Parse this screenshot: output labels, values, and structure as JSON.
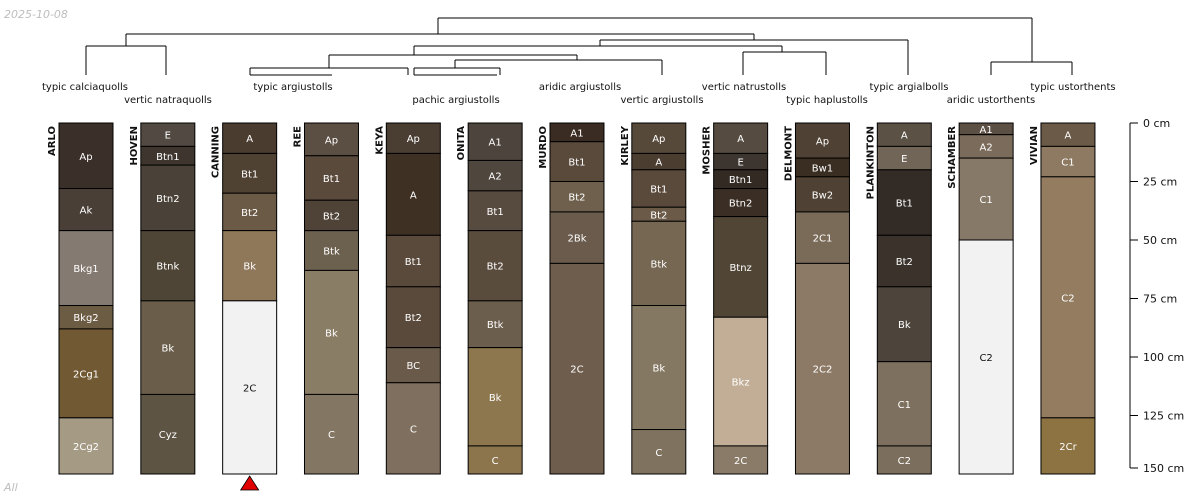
{
  "header": {
    "date": "2025-10-08",
    "footer": "All"
  },
  "chart_data": {
    "type": "soil-profile-sketch",
    "depth_unit": "cm",
    "depth_axis": {
      "ticks": [
        0,
        25,
        50,
        75,
        100,
        125,
        150
      ],
      "labels": [
        "0 cm",
        "25 cm",
        "50 cm",
        "75 cm",
        "100 cm",
        "125 cm",
        "150 cm"
      ],
      "range": [
        0,
        150
      ]
    },
    "profiles": [
      {
        "name": "ARLO",
        "horizons": [
          {
            "name": "Ap",
            "top": 0,
            "bottom": 28,
            "color": "#3b2f2a"
          },
          {
            "name": "Ak",
            "top": 28,
            "bottom": 46,
            "color": "#4a3f37"
          },
          {
            "name": "Bkg1",
            "top": 46,
            "bottom": 78,
            "color": "#857a71"
          },
          {
            "name": "Bkg2",
            "top": 78,
            "bottom": 88,
            "color": "#6c5c44"
          },
          {
            "name": "2Cg1",
            "top": 88,
            "bottom": 126,
            "color": "#715a33"
          },
          {
            "name": "2Cg2",
            "top": 126,
            "bottom": 150,
            "color": "#a59a84"
          }
        ]
      },
      {
        "name": "HOVEN",
        "horizons": [
          {
            "name": "E",
            "top": 0,
            "bottom": 10,
            "color": "#524a42"
          },
          {
            "name": "Btn1",
            "top": 10,
            "bottom": 18,
            "color": "#3d352e"
          },
          {
            "name": "Btn2",
            "top": 18,
            "bottom": 46,
            "color": "#4a4238"
          },
          {
            "name": "Btnk",
            "top": 46,
            "bottom": 76,
            "color": "#4e4536"
          },
          {
            "name": "Bk",
            "top": 76,
            "bottom": 116,
            "color": "#6a5e4b"
          },
          {
            "name": "Cyz",
            "top": 116,
            "bottom": 150,
            "color": "#5d5444"
          }
        ]
      },
      {
        "name": "CANNING",
        "horizons": [
          {
            "name": "A",
            "top": 0,
            "bottom": 13,
            "color": "#4b3c30"
          },
          {
            "name": "Bt1",
            "top": 13,
            "bottom": 30,
            "color": "#4f4233"
          },
          {
            "name": "Bt2",
            "top": 30,
            "bottom": 46,
            "color": "#6b5a45"
          },
          {
            "name": "Bk",
            "top": 46,
            "bottom": 76,
            "color": "#8f775a"
          },
          {
            "name": "2C",
            "top": 76,
            "bottom": 150,
            "color": "#f2f2f2"
          }
        ]
      },
      {
        "name": "REE",
        "horizons": [
          {
            "name": "Ap",
            "top": 0,
            "bottom": 14,
            "color": "#5b4e42"
          },
          {
            "name": "Bt1",
            "top": 14,
            "bottom": 33,
            "color": "#5a4a3b"
          },
          {
            "name": "Bt2",
            "top": 33,
            "bottom": 46,
            "color": "#4f4236"
          },
          {
            "name": "Btk",
            "top": 46,
            "bottom": 63,
            "color": "#6c604f"
          },
          {
            "name": "Bk",
            "top": 63,
            "bottom": 116,
            "color": "#8a7d66"
          },
          {
            "name": "C",
            "top": 116,
            "bottom": 150,
            "color": "#837663"
          }
        ]
      },
      {
        "name": "KEYA",
        "horizons": [
          {
            "name": "Ap",
            "top": 0,
            "bottom": 13,
            "color": "#4a3e33"
          },
          {
            "name": "A",
            "top": 13,
            "bottom": 48,
            "color": "#3e3124"
          },
          {
            "name": "Bt1",
            "top": 48,
            "bottom": 70,
            "color": "#5a4a3b"
          },
          {
            "name": "Bt2",
            "top": 70,
            "bottom": 96,
            "color": "#5a4a3b"
          },
          {
            "name": "BC",
            "top": 96,
            "bottom": 111,
            "color": "#6a5a4a"
          },
          {
            "name": "C",
            "top": 111,
            "bottom": 150,
            "color": "#7f6f5e"
          }
        ]
      },
      {
        "name": "ONITA",
        "horizons": [
          {
            "name": "A1",
            "top": 0,
            "bottom": 16,
            "color": "#4d443d"
          },
          {
            "name": "A2",
            "top": 16,
            "bottom": 29,
            "color": "#4f463e"
          },
          {
            "name": "Bt1",
            "top": 29,
            "bottom": 46,
            "color": "#574b3f"
          },
          {
            "name": "Bt2",
            "top": 46,
            "bottom": 76,
            "color": "#5a4c3d"
          },
          {
            "name": "Btk",
            "top": 76,
            "bottom": 96,
            "color": "#6c5e4c"
          },
          {
            "name": "Bk",
            "top": 96,
            "bottom": 138,
            "color": "#8d774e"
          },
          {
            "name": "C",
            "top": 138,
            "bottom": 150,
            "color": "#8c754d"
          }
        ]
      },
      {
        "name": "MURDO",
        "horizons": [
          {
            "name": "A1",
            "top": 0,
            "bottom": 8,
            "color": "#3a2c22"
          },
          {
            "name": "Bt1",
            "top": 8,
            "bottom": 25,
            "color": "#5a4a3c"
          },
          {
            "name": "Bt2",
            "top": 25,
            "bottom": 38,
            "color": "#6f604e"
          },
          {
            "name": "2Bk",
            "top": 38,
            "bottom": 60,
            "color": "#6a5b4c"
          },
          {
            "name": "2C",
            "top": 60,
            "bottom": 150,
            "color": "#6e5d4c"
          }
        ]
      },
      {
        "name": "KIRLEY",
        "horizons": [
          {
            "name": "Ap",
            "top": 0,
            "bottom": 13,
            "color": "#564939"
          },
          {
            "name": "A",
            "top": 13,
            "bottom": 20,
            "color": "#4b3e30"
          },
          {
            "name": "Bt1",
            "top": 20,
            "bottom": 36,
            "color": "#5a4a3b"
          },
          {
            "name": "Bt2",
            "top": 36,
            "bottom": 42,
            "color": "#6a5a47"
          },
          {
            "name": "Btk",
            "top": 42,
            "bottom": 78,
            "color": "#756752"
          },
          {
            "name": "Bk",
            "top": 78,
            "bottom": 131,
            "color": "#857862"
          },
          {
            "name": "C",
            "top": 131,
            "bottom": 150,
            "color": "#7f725f"
          }
        ]
      },
      {
        "name": "MOSHER",
        "horizons": [
          {
            "name": "A",
            "top": 0,
            "bottom": 13,
            "color": "#564b40"
          },
          {
            "name": "E",
            "top": 13,
            "bottom": 20,
            "color": "#3d3530"
          },
          {
            "name": "Btn1",
            "top": 20,
            "bottom": 28,
            "color": "#332a24"
          },
          {
            "name": "Btn2",
            "top": 28,
            "bottom": 40,
            "color": "#3a2e25"
          },
          {
            "name": "Btnz",
            "top": 40,
            "bottom": 83,
            "color": "#514636"
          },
          {
            "name": "Bkz",
            "top": 83,
            "bottom": 138,
            "color": "#c2ae96"
          },
          {
            "name": "2C",
            "top": 138,
            "bottom": 150,
            "color": "#8a7b68"
          }
        ]
      },
      {
        "name": "DELMONT",
        "horizons": [
          {
            "name": "Ap",
            "top": 0,
            "bottom": 15,
            "color": "#4f4133"
          },
          {
            "name": "Bw1",
            "top": 15,
            "bottom": 23,
            "color": "#3a2e23"
          },
          {
            "name": "Bw2",
            "top": 23,
            "bottom": 38,
            "color": "#4f4133"
          },
          {
            "name": "2C1",
            "top": 38,
            "bottom": 60,
            "color": "#7a6a58"
          },
          {
            "name": "2C2",
            "top": 60,
            "bottom": 150,
            "color": "#8c7a66"
          }
        ]
      },
      {
        "name": "PLANKINTON",
        "horizons": [
          {
            "name": "A",
            "top": 0,
            "bottom": 10,
            "color": "#5c5145"
          },
          {
            "name": "E",
            "top": 10,
            "bottom": 20,
            "color": "#716557"
          },
          {
            "name": "Bt1",
            "top": 20,
            "bottom": 48,
            "color": "#332b26"
          },
          {
            "name": "Bt2",
            "top": 48,
            "bottom": 70,
            "color": "#3a322b"
          },
          {
            "name": "Bk",
            "top": 70,
            "bottom": 102,
            "color": "#4d443b"
          },
          {
            "name": "C1",
            "top": 102,
            "bottom": 138,
            "color": "#7e705e"
          },
          {
            "name": "C2",
            "top": 138,
            "bottom": 150,
            "color": "#7b6e5d"
          }
        ]
      },
      {
        "name": "SCHAMBER",
        "horizons": [
          {
            "name": "A1",
            "top": 0,
            "bottom": 5,
            "color": "#5c4f43"
          },
          {
            "name": "A2",
            "top": 5,
            "bottom": 15,
            "color": "#7a6b5b"
          },
          {
            "name": "C1",
            "top": 15,
            "bottom": 50,
            "color": "#867968"
          },
          {
            "name": "C2",
            "top": 50,
            "bottom": 150,
            "color": "#f2f2f2"
          }
        ]
      },
      {
        "name": "VIVIAN",
        "horizons": [
          {
            "name": "A",
            "top": 0,
            "bottom": 10,
            "color": "#6c5a48"
          },
          {
            "name": "C1",
            "top": 10,
            "bottom": 23,
            "color": "#8e7a62"
          },
          {
            "name": "C2",
            "top": 23,
            "bottom": 126,
            "color": "#937c60"
          },
          {
            "name": "2Cr",
            "top": 126,
            "bottom": 150,
            "color": "#8d7242"
          }
        ]
      }
    ],
    "dendrogram_labels": [
      "typic calciaquolls",
      "vertic natraquolls",
      "typic argiustolls",
      "pachic argiustolls",
      "aridic argiustolls",
      "vertic argiustolls",
      "vertic natrustolls",
      "typic haplustolls",
      "typic argialbolls",
      "aridic ustorthents",
      "typic ustorthents"
    ],
    "marker": {
      "profile": "CANNING",
      "color": "#e00000"
    }
  }
}
